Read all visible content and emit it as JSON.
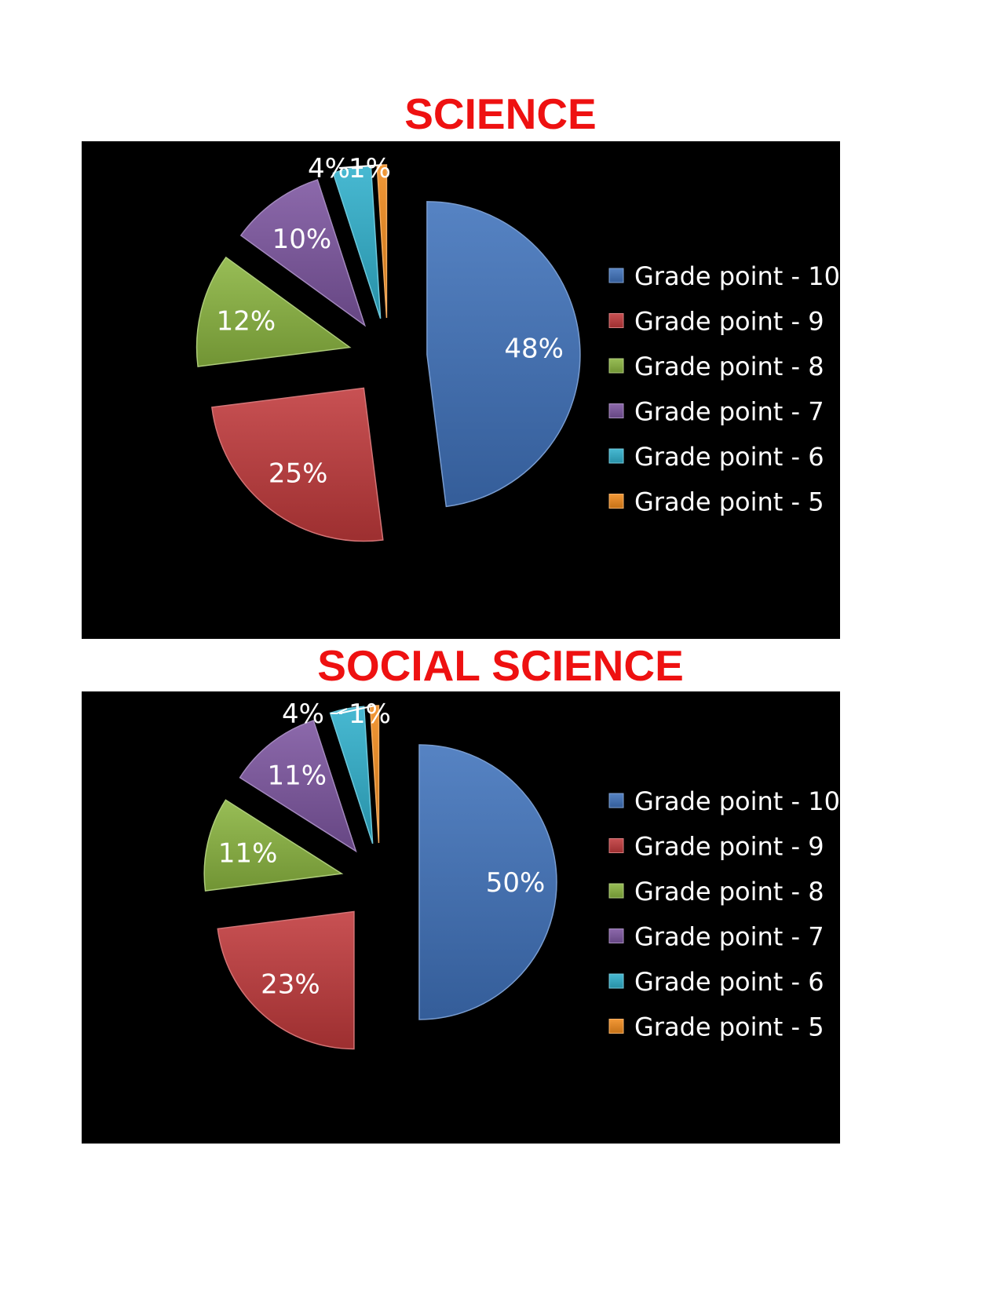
{
  "chart_data": [
    {
      "type": "pie",
      "title": "SCIENCE",
      "categories": [
        "Grade point - 10",
        "Grade point - 9",
        "Grade point - 8",
        "Grade point - 7",
        "Grade point - 6",
        "Grade point - 5"
      ],
      "values": [
        48,
        25,
        12,
        10,
        4,
        1
      ],
      "data_labels": [
        "48%",
        "25%",
        "12%",
        "10%",
        "4%",
        "1%"
      ],
      "colors": [
        "#3f72bb",
        "#c0393b",
        "#8ab43f",
        "#7c55a0",
        "#2fb0cc",
        "#f08a1c"
      ],
      "legend_position": "right",
      "exploded": true
    },
    {
      "type": "pie",
      "title": "SOCIAL SCIENCE",
      "categories": [
        "Grade point - 10",
        "Grade point - 9",
        "Grade point - 8",
        "Grade point - 7",
        "Grade point - 6",
        "Grade point - 5"
      ],
      "values": [
        50,
        23,
        11,
        11,
        4,
        1
      ],
      "data_labels": [
        "50%",
        "23%",
        "11%",
        "11%",
        "4%",
        "1%"
      ],
      "colors": [
        "#3f72bb",
        "#c0393b",
        "#8ab43f",
        "#7c55a0",
        "#2fb0cc",
        "#f08a1c"
      ],
      "legend_position": "right",
      "exploded": true
    }
  ]
}
